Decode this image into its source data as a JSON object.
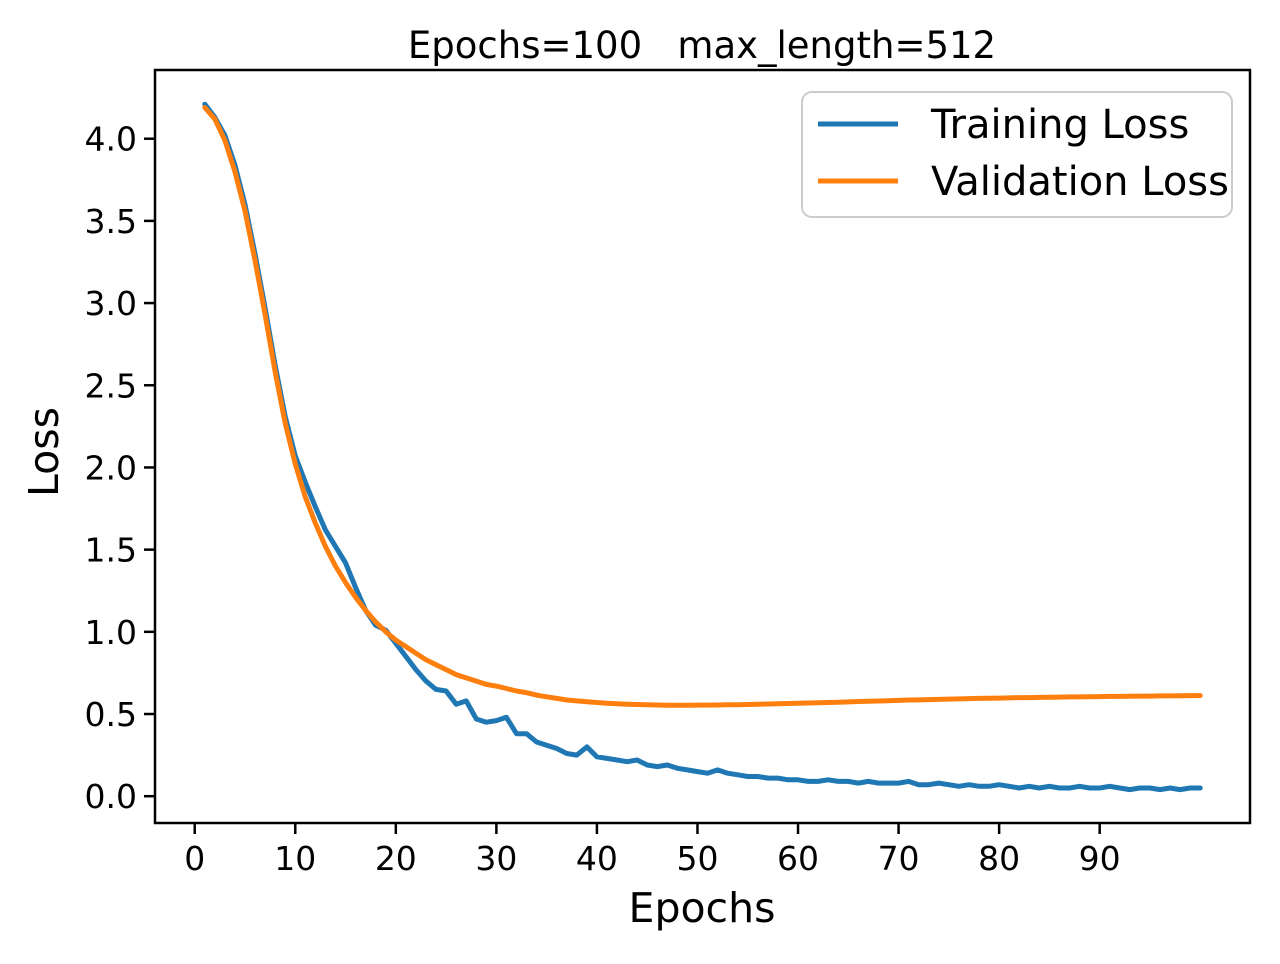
{
  "chart_data": {
    "type": "line",
    "title": "Epochs=100   max_length=512",
    "xlabel": "Epochs",
    "ylabel": "Loss",
    "xlim": [
      -3.95,
      104.95
    ],
    "ylim": [
      -0.163,
      4.418
    ],
    "xticks": [
      0,
      10,
      20,
      30,
      40,
      50,
      60,
      70,
      80,
      90
    ],
    "yticks": [
      0.0,
      0.5,
      1.0,
      1.5,
      2.0,
      2.5,
      3.0,
      3.5,
      4.0
    ],
    "grid": false,
    "legend_position": "upper right",
    "x": [
      1,
      2,
      3,
      4,
      5,
      6,
      7,
      8,
      9,
      10,
      11,
      12,
      13,
      14,
      15,
      16,
      17,
      18,
      19,
      20,
      21,
      22,
      23,
      24,
      25,
      26,
      27,
      28,
      29,
      30,
      31,
      32,
      33,
      34,
      35,
      36,
      37,
      38,
      39,
      40,
      41,
      42,
      43,
      44,
      45,
      46,
      47,
      48,
      49,
      50,
      51,
      52,
      53,
      54,
      55,
      56,
      57,
      58,
      59,
      60,
      61,
      62,
      63,
      64,
      65,
      66,
      67,
      68,
      69,
      70,
      71,
      72,
      73,
      74,
      75,
      76,
      77,
      78,
      79,
      80,
      81,
      82,
      83,
      84,
      85,
      86,
      87,
      88,
      89,
      90,
      91,
      92,
      93,
      94,
      95,
      96,
      97,
      98,
      99,
      100
    ],
    "series": [
      {
        "name": "Training Loss",
        "color": "#1f77b4",
        "values": [
          4.21,
          4.13,
          4.02,
          3.84,
          3.6,
          3.3,
          2.97,
          2.62,
          2.31,
          2.07,
          1.91,
          1.76,
          1.62,
          1.52,
          1.42,
          1.27,
          1.13,
          1.04,
          1.01,
          0.93,
          0.85,
          0.77,
          0.7,
          0.65,
          0.64,
          0.56,
          0.58,
          0.47,
          0.45,
          0.46,
          0.48,
          0.38,
          0.38,
          0.33,
          0.31,
          0.29,
          0.26,
          0.25,
          0.3,
          0.24,
          0.23,
          0.22,
          0.21,
          0.22,
          0.19,
          0.18,
          0.19,
          0.17,
          0.16,
          0.15,
          0.14,
          0.16,
          0.14,
          0.13,
          0.12,
          0.12,
          0.11,
          0.11,
          0.1,
          0.1,
          0.09,
          0.09,
          0.1,
          0.09,
          0.09,
          0.08,
          0.09,
          0.08,
          0.08,
          0.08,
          0.09,
          0.07,
          0.07,
          0.08,
          0.07,
          0.06,
          0.07,
          0.06,
          0.06,
          0.07,
          0.06,
          0.05,
          0.06,
          0.05,
          0.06,
          0.05,
          0.05,
          0.06,
          0.05,
          0.05,
          0.06,
          0.05,
          0.04,
          0.05,
          0.05,
          0.04,
          0.05,
          0.04,
          0.05,
          0.05
        ]
      },
      {
        "name": "Validation Loss",
        "color": "#ff7f0e",
        "values": [
          4.19,
          4.12,
          3.99,
          3.8,
          3.56,
          3.26,
          2.93,
          2.58,
          2.27,
          2.02,
          1.82,
          1.66,
          1.52,
          1.4,
          1.3,
          1.21,
          1.13,
          1.06,
          1.0,
          0.95,
          0.91,
          0.87,
          0.83,
          0.8,
          0.77,
          0.74,
          0.72,
          0.7,
          0.68,
          0.67,
          0.655,
          0.64,
          0.63,
          0.615,
          0.605,
          0.595,
          0.585,
          0.58,
          0.575,
          0.57,
          0.565,
          0.562,
          0.56,
          0.558,
          0.556,
          0.555,
          0.553,
          0.553,
          0.553,
          0.554,
          0.554,
          0.555,
          0.556,
          0.557,
          0.558,
          0.56,
          0.561,
          0.563,
          0.564,
          0.566,
          0.567,
          0.569,
          0.57,
          0.572,
          0.574,
          0.576,
          0.578,
          0.579,
          0.581,
          0.583,
          0.585,
          0.586,
          0.588,
          0.589,
          0.591,
          0.592,
          0.594,
          0.595,
          0.596,
          0.597,
          0.598,
          0.6,
          0.6,
          0.601,
          0.602,
          0.603,
          0.604,
          0.604,
          0.605,
          0.606,
          0.607,
          0.607,
          0.608,
          0.609,
          0.609,
          0.61,
          0.61,
          0.611,
          0.612,
          0.612
        ]
      }
    ],
    "axis_color": "#000000",
    "legend_border_color": "#cccccc",
    "background_color": "#ffffff"
  }
}
